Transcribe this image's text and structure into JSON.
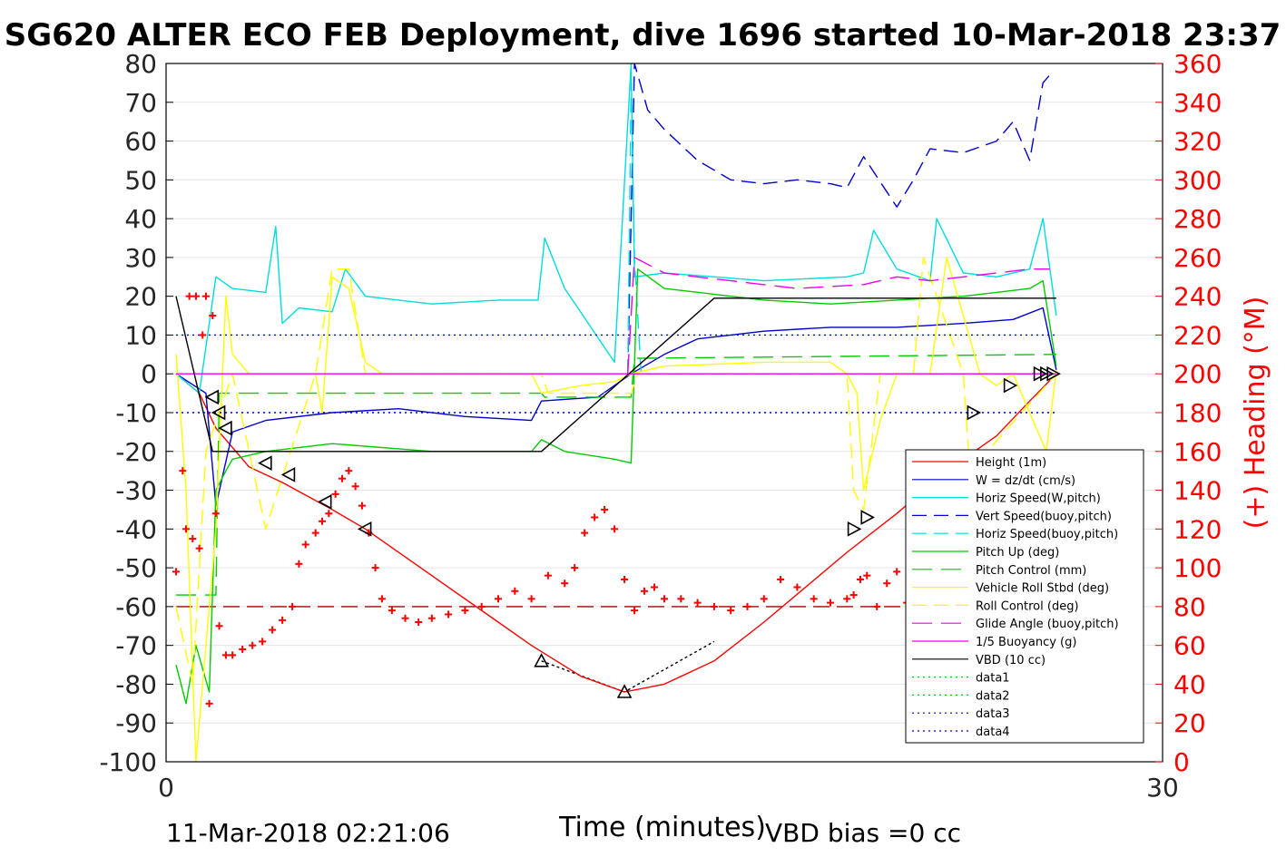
{
  "chart_data": {
    "type": "line",
    "title": "SG620 ALTER ECO FEB Deployment, dive 1696 started 10-Mar-2018 23:37",
    "xlabel": "Time (minutes)",
    "ylabel_right": "(+) Heading (°M)",
    "xlim": [
      0,
      30
    ],
    "ylim": [
      -100,
      80
    ],
    "ylim_right": [
      0,
      360
    ],
    "x_ticks": [
      "0",
      "30"
    ],
    "y_ticks": [
      "80",
      "70",
      "60",
      "50",
      "40",
      "30",
      "20",
      "10",
      "0",
      "-10",
      "-20",
      "-30",
      "-40",
      "-50",
      "-60",
      "-70",
      "-80",
      "-90",
      "-100"
    ],
    "y_ticks_right": [
      "360",
      "340",
      "320",
      "300",
      "280",
      "260",
      "240",
      "220",
      "200",
      "180",
      "160",
      "140",
      "120",
      "100",
      "80",
      "60",
      "40",
      "20",
      "0"
    ],
    "grid": true,
    "legend_position": "lower-right",
    "footer_left": "11-Mar-2018 02:21:06",
    "footer_right": "VBD bias =0 cc",
    "colors": {
      "red": "#ff0000",
      "blue": "#0000cc",
      "cyan": "#00dddd",
      "green": "#00cc00",
      "yellow": "#ffff00",
      "magenta": "#ee00ee",
      "black": "#000000"
    },
    "series": [
      {
        "name": "Height (1m)",
        "color": "#ff0000",
        "dash": "",
        "x": [
          0.3,
          1.0,
          1.5,
          2.5,
          3.5,
          5.0,
          6.0,
          8.0,
          10.0,
          11.0,
          12.5,
          13.8,
          15.0,
          16.5,
          18.0,
          20.5,
          22.0,
          23.5,
          25.0,
          26.0,
          26.8
        ],
        "y": [
          0,
          -5,
          -14,
          -24,
          -28,
          -35,
          -40,
          -52,
          -64,
          -70,
          -78,
          -82,
          -80,
          -74,
          -64,
          -46,
          -36,
          -25,
          -16,
          -7,
          0
        ]
      },
      {
        "name": "W = dz/dt (cm/s)",
        "color": "#0000cc",
        "dash": "",
        "x": [
          0.3,
          1.2,
          1.5,
          2.0,
          3.0,
          5.0,
          7.0,
          9.0,
          11.0,
          11.3,
          13.0,
          14.0,
          15.0,
          16.0,
          18.0,
          20.0,
          22.0,
          24.0,
          25.5,
          26.4,
          26.8
        ],
        "y": [
          0,
          -5,
          -34,
          -15,
          -12,
          -10,
          -9,
          -11,
          -12,
          -7,
          -6,
          0,
          5,
          9,
          11,
          12,
          12,
          13,
          14,
          17,
          1
        ]
      },
      {
        "name": "Horiz Speed(W,pitch)",
        "color": "#00dddd",
        "dash": "",
        "x": [
          0.3,
          1.0,
          1.5,
          2.0,
          3.0,
          3.3,
          3.5,
          4.0,
          5.0,
          5.4,
          6.0,
          8.0,
          10.0,
          11.2,
          11.4,
          12.0,
          13.5,
          14.0,
          14.1,
          15.0,
          18.0,
          20.5,
          21.0,
          21.3,
          22.0,
          23.0,
          23.2,
          24.0,
          25.0,
          26.0,
          26.4,
          26.8
        ],
        "y": [
          0,
          -5,
          25,
          22,
          21,
          38,
          13,
          17,
          16,
          27,
          20,
          18,
          19,
          19,
          35,
          22,
          3,
          80,
          25,
          26,
          24,
          25,
          26,
          37,
          27,
          24,
          40,
          26,
          25,
          27,
          40,
          15
        ]
      },
      {
        "name": "Vert Speed(buoy,pitch)",
        "color": "#0000cc",
        "dash": "16,8",
        "x": [
          13.9,
          14.1,
          14.5,
          15.0,
          16.0,
          17.0,
          18.0,
          19.0,
          20.0,
          20.5,
          21.0,
          22.0,
          22.5,
          23.0,
          24.0,
          25.0,
          25.5,
          26.0,
          26.4,
          26.6
        ],
        "y": [
          0,
          80,
          68,
          63,
          55,
          50,
          49,
          50,
          49,
          48,
          56,
          43,
          50,
          58,
          57,
          60,
          65,
          55,
          75,
          77
        ]
      },
      {
        "name": "Horiz Speed(buoy,pitch)",
        "color": "#00dddd",
        "dash": "16,8",
        "x": [
          13.9,
          14.0,
          14.1,
          14.3,
          26.6
        ],
        "y": [
          0,
          75,
          30,
          0,
          0
        ]
      },
      {
        "name": "Pitch Up (deg)",
        "color": "#00cc00",
        "dash": "",
        "x": [
          0.3,
          0.6,
          0.9,
          1.3,
          1.5,
          1.8,
          2.0,
          3.0,
          5.0,
          8.0,
          10.0,
          11.0,
          11.3,
          12.0,
          13.5,
          14.0,
          14.2,
          15.0,
          18.0,
          20.0,
          22.0,
          24.0,
          25.0,
          26.0,
          26.4,
          26.8
        ],
        "y": [
          -75,
          -85,
          -70,
          -82,
          -30,
          -25,
          -22,
          -20,
          -18,
          -20,
          -20,
          -20,
          -17,
          -20,
          -22,
          -23,
          27,
          22,
          19,
          18,
          19,
          20,
          21,
          22,
          24,
          2
        ]
      },
      {
        "name": "Pitch Control (mm)",
        "color": "#00cc00",
        "dash": "22,10",
        "x": [
          0.3,
          1.5,
          1.6,
          11.3,
          11.4,
          14.0,
          14.1,
          26.8
        ],
        "y": [
          -57,
          -57,
          -5,
          -5,
          -6,
          -6,
          4,
          5
        ]
      },
      {
        "name": "Vehicle Roll Stbd (deg)",
        "color": "#ffff00",
        "dash": "",
        "x": [
          0.3,
          0.6,
          0.9,
          1.2,
          1.5,
          1.8,
          2.0,
          2.5,
          3.0,
          4.0,
          4.5,
          4.7,
          5.0,
          5.5,
          6.0,
          6.5,
          8.0,
          10.0,
          11.0,
          11.3,
          12.5,
          13.5,
          14.0,
          15.0,
          18.0,
          20.0,
          20.5,
          20.8,
          21.0,
          21.5,
          22.0,
          22.5,
          23.0,
          23.5,
          24.0,
          24.5,
          25.0,
          25.5,
          26.0,
          26.5,
          26.8
        ],
        "y": [
          5,
          -30,
          -100,
          -70,
          -40,
          20,
          5,
          0,
          0,
          0,
          0,
          -10,
          25,
          22,
          3,
          0,
          0,
          0,
          0,
          -5,
          -3,
          -2,
          0,
          2,
          3,
          3,
          0,
          -5,
          -30,
          -12,
          0,
          0,
          0,
          30,
          15,
          0,
          -3,
          0,
          -10,
          -20,
          1
        ]
      },
      {
        "name": "Roll Control (deg)",
        "color": "#ffff00",
        "dash": "16,8",
        "x": [
          0.3,
          0.8,
          1.2,
          2.0,
          3.0,
          4.5,
          5.0,
          5.5,
          6.0,
          11.3,
          11.5,
          14.0,
          14.2,
          20.5,
          20.7,
          21.0,
          21.5,
          22.5,
          22.8,
          24.0,
          24.2,
          26.8
        ],
        "y": [
          -60,
          -80,
          -20,
          0,
          -40,
          0,
          27,
          27,
          0,
          0,
          -5,
          -5,
          0,
          0,
          -30,
          -35,
          0,
          0,
          30,
          0,
          -25,
          0
        ]
      },
      {
        "name": "Glide Angle (buoy,pitch)",
        "color": "#ee00ee",
        "dash": "22,10",
        "x": [
          13.9,
          14.1,
          15.0,
          17.0,
          19.0,
          21.0,
          22.0,
          23.0,
          24.0,
          25.0,
          26.0,
          26.6
        ],
        "y": [
          0,
          30,
          26,
          24,
          22,
          23,
          25,
          24,
          25,
          26,
          27,
          27
        ]
      },
      {
        "name": "1/5 Buoyancy (g)",
        "color": "#ee00ee",
        "dash": "",
        "x": [
          0.3,
          13.9,
          14.0,
          26.8
        ],
        "y": [
          0,
          0,
          0,
          0
        ]
      },
      {
        "name": "VBD (10 cc)",
        "color": "#000000",
        "dash": "",
        "x": [
          0.3,
          1.4,
          11.3,
          16.5,
          26.8
        ],
        "y": [
          20,
          -20,
          -20,
          19.5,
          19.5
        ]
      },
      {
        "name": "data1",
        "color": "#00cc00",
        "dash": "2,4",
        "x": [],
        "y": []
      },
      {
        "name": "data2",
        "color": "#00cc00",
        "dash": "2,4",
        "x": [],
        "y": []
      },
      {
        "name": "data3",
        "color": "#0000cc",
        "dash": "2,4",
        "x": [
          0.3,
          26.8
        ],
        "y": [
          10,
          10
        ]
      },
      {
        "name": "data4",
        "color": "#0000cc",
        "dash": "2,4",
        "x": [
          0.3,
          26.8
        ],
        "y": [
          -10,
          -10
        ]
      }
    ],
    "extra_lines": [
      {
        "color": "#aa0000",
        "dash": "18,8",
        "x": [
          0.3,
          26.8
        ],
        "y": [
          -60,
          -60
        ]
      },
      {
        "color": "#000000",
        "dash": "3,3",
        "x": [
          11.3,
          13.8,
          16.5
        ],
        "y": [
          -74,
          -82,
          -69
        ]
      }
    ],
    "heading_points": {
      "x": [
        0.3,
        0.5,
        0.6,
        0.7,
        0.8,
        0.9,
        1.0,
        1.1,
        1.2,
        1.3,
        1.4,
        1.5,
        1.6,
        1.8,
        2.0,
        2.3,
        2.6,
        2.9,
        3.2,
        3.5,
        3.8,
        4.0,
        4.2,
        4.5,
        4.7,
        4.9,
        5.1,
        5.3,
        5.5,
        5.7,
        5.9,
        6.1,
        6.3,
        6.5,
        6.8,
        7.2,
        7.6,
        8.0,
        8.5,
        9.0,
        9.5,
        10.0,
        10.5,
        11.0,
        11.5,
        12.0,
        12.3,
        12.6,
        12.9,
        13.2,
        13.5,
        13.8,
        14.1,
        14.4,
        14.7,
        15.0,
        15.5,
        16.0,
        16.5,
        17.0,
        17.5,
        18.0,
        18.5,
        19.0,
        19.5,
        20.0,
        20.5,
        20.7,
        20.9,
        21.1,
        21.4,
        21.7,
        22.0,
        22.3,
        22.6,
        22.9,
        23.2,
        23.5,
        23.8,
        24.1,
        24.4,
        24.7,
        25.0,
        25.3,
        25.6,
        25.9,
        26.2,
        26.5
      ],
      "y": [
        98,
        150,
        120,
        240,
        115,
        240,
        110,
        220,
        240,
        30,
        230,
        128,
        70,
        55,
        55,
        58,
        60,
        62,
        68,
        73,
        80,
        102,
        112,
        118,
        124,
        128,
        138,
        146,
        150,
        142,
        132,
        118,
        100,
        84,
        78,
        74,
        72,
        74,
        76,
        78,
        80,
        84,
        88,
        84,
        96,
        92,
        100,
        118,
        126,
        130,
        120,
        94,
        78,
        88,
        90,
        84,
        84,
        82,
        80,
        78,
        80,
        84,
        94,
        90,
        84,
        82,
        84,
        86,
        94,
        96,
        80,
        92,
        98,
        82,
        76,
        66,
        60,
        50,
        40,
        38,
        37,
        38,
        42,
        52,
        70,
        86,
        100,
        120
      ]
    },
    "markers": {
      "x": [
        1.4,
        1.6,
        1.8,
        3.0,
        3.7,
        4.8,
        6.0,
        11.3,
        13.8,
        20.7,
        21.1,
        22.6,
        24.3,
        25.4,
        26.3,
        26.5,
        26.7
      ],
      "y": [
        -6,
        -10,
        -14,
        -23,
        -26,
        -33,
        -40,
        -74,
        -82,
        -40,
        -37,
        -26,
        -10,
        -3,
        0,
        0,
        0
      ],
      "dir": [
        "left",
        "left",
        "left",
        "left",
        "left",
        "left",
        "left",
        "up",
        "up",
        "right",
        "right",
        "right",
        "right",
        "right",
        "right",
        "right",
        "right"
      ]
    }
  }
}
